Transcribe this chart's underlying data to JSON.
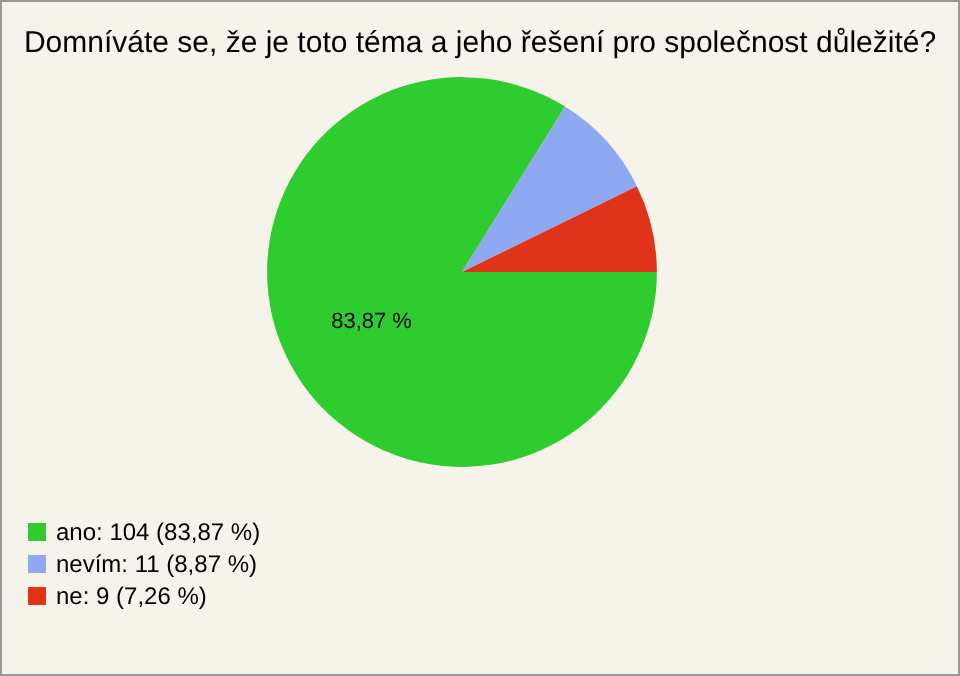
{
  "chart_data": {
    "type": "pie",
    "title": "Domníváte se, že je toto téma a jeho řešení pro společnost důležité?",
    "categories": [
      "ano: 104 (83,87 %)",
      "nevím: 11 (8,87 %)",
      "ne: 9 (7,26 %)"
    ],
    "values": [
      83.87,
      8.87,
      7.26
    ],
    "colors": [
      "#2ecc2e",
      "#8fa8f2",
      "#e0341a"
    ],
    "value_labels": [
      "83,87 %",
      null,
      null
    ],
    "legend": "bottom left"
  }
}
